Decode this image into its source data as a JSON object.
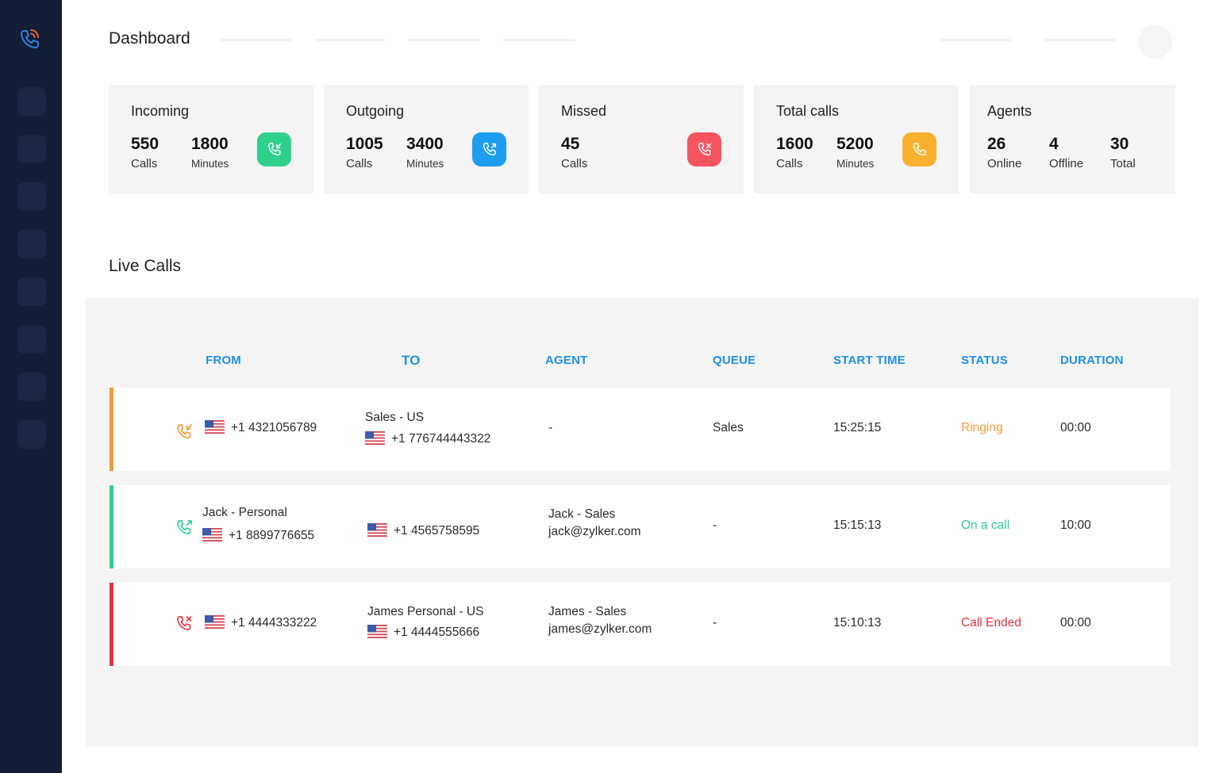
{
  "header": {
    "title": "Dashboard"
  },
  "stats": {
    "incoming": {
      "title": "Incoming",
      "calls": "550",
      "calls_label": "Calls",
      "minutes": "1800",
      "minutes_label": "Minutes",
      "icon": "incoming-call-icon",
      "color": "#2fd08b"
    },
    "outgoing": {
      "title": "Outgoing",
      "calls": "1005",
      "calls_label": "Calls",
      "minutes": "3400",
      "minutes_label": "Minutes",
      "icon": "outgoing-call-icon",
      "color": "#1e9cf0"
    },
    "missed": {
      "title": "Missed",
      "calls": "45",
      "calls_label": "Calls",
      "icon": "missed-call-icon",
      "color": "#f6555f"
    },
    "total": {
      "title": "Total calls",
      "calls": "1600",
      "calls_label": "Calls",
      "minutes": "5200",
      "minutes_label": "Minutes",
      "icon": "phone-icon",
      "color": "#fbb130"
    },
    "agents": {
      "title": "Agents",
      "online": "26",
      "online_label": "Online",
      "offline": "4",
      "offline_label": "Offline",
      "total": "30",
      "total_label": "Total"
    }
  },
  "live_calls": {
    "title": "Live Calls",
    "columns": [
      "FROM",
      "TO",
      "AGENT",
      "QUEUE",
      "START TIME",
      "STATUS",
      "DURATION"
    ],
    "rows": [
      {
        "direction_icon": "incoming-call-icon",
        "accent": "#f39a37",
        "from_name": "",
        "from_number": "+1 4321056789",
        "to_name": "Sales - US",
        "to_number": "+1 776744443322",
        "agent_name": "-",
        "agent_email": "",
        "queue": "Sales",
        "start_time": "15:25:15",
        "status": "Ringing",
        "status_color": "#f39a37",
        "duration": "00:00"
      },
      {
        "direction_icon": "outgoing-call-icon",
        "accent": "#2fd08b",
        "from_name": "Jack - Personal",
        "from_number": "+1 8899776655",
        "to_name": "",
        "to_number": "+1 4565758595",
        "agent_name": "Jack - Sales",
        "agent_email": "jack@zylker.com",
        "queue": "-",
        "start_time": "15:15:13",
        "status": "On a call",
        "status_color": "#2fd08b",
        "duration": "10:00"
      },
      {
        "direction_icon": "missed-call-icon",
        "accent": "#e5333f",
        "from_name": "",
        "from_number": "+1 4444333222",
        "to_name": "James Personal - US",
        "to_number": "+1 4444555666",
        "agent_name": "James - Sales",
        "agent_email": "james@zylker.com",
        "queue": "-",
        "start_time": "15:10:13",
        "status": "Call Ended",
        "status_color": "#e5333f",
        "duration": "00:00"
      }
    ]
  }
}
